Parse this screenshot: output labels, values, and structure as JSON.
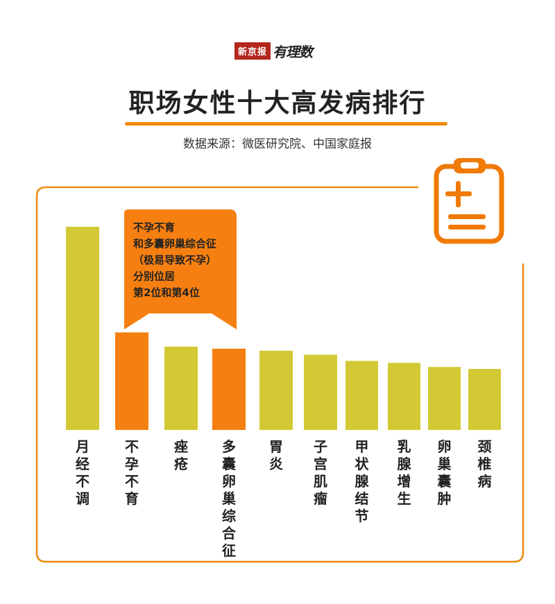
{
  "logo": {
    "brand": "新京报",
    "column": "有理数"
  },
  "title": "职场女性十大高发病排行",
  "source": "数据来源：微医研究院、中国家庭报",
  "colors": {
    "accent": "#f07a06",
    "bar": "#d2c934",
    "highlight": "#f57f10",
    "frame": "#f08a11"
  },
  "icon": "medical-clipboard-icon",
  "callout": {
    "lines": [
      "不孕不育",
      "和多囊卵巢综合征",
      "（极易导致不孕）",
      "分别位居",
      "第2位和第4位"
    ]
  },
  "chart_data": {
    "type": "bar",
    "title": "职场女性十大高发病排行",
    "categories": [
      "月经不调",
      "不孕不育",
      "痤疮",
      "多囊卵巢综合征",
      "胃炎",
      "子宫肌瘤",
      "甲状腺结节",
      "乳腺增生",
      "卵巢囊肿",
      "颈椎病"
    ],
    "values": [
      100,
      48,
      41,
      40,
      39,
      37,
      34,
      33,
      31,
      30
    ],
    "highlighted": [
      "不孕不育",
      "多囊卵巢综合征"
    ],
    "ylim": [
      0,
      100
    ],
    "grid": false,
    "legend": "none"
  }
}
